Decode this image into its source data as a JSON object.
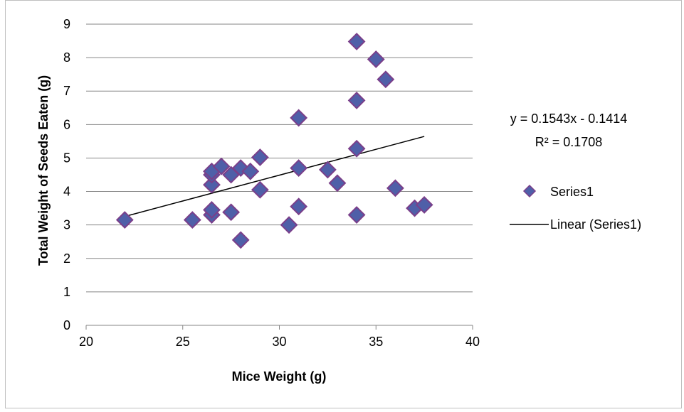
{
  "chart_data": {
    "type": "scatter",
    "xlabel": "Mice Weight (g)",
    "ylabel": "Total Weight of Seeds Eaten (g)",
    "xlim": [
      20,
      40
    ],
    "ylim": [
      0,
      9
    ],
    "x_ticks": [
      20,
      25,
      30,
      35,
      40
    ],
    "y_ticks": [
      0,
      1,
      2,
      3,
      4,
      5,
      6,
      7,
      8,
      9
    ],
    "grid": "horizontal",
    "legend_position": "right",
    "series": [
      {
        "name": "Series1",
        "color": "#4f5fa8",
        "edge_color": "#7a3f8a",
        "points": [
          [
            22,
            3.15
          ],
          [
            25.5,
            3.15
          ],
          [
            26.5,
            3.3
          ],
          [
            26.5,
            3.45
          ],
          [
            26.5,
            4.2
          ],
          [
            26.5,
            4.5
          ],
          [
            26.5,
            4.6
          ],
          [
            27,
            4.75
          ],
          [
            27.5,
            4.5
          ],
          [
            27.5,
            3.38
          ],
          [
            28,
            4.7
          ],
          [
            28,
            2.55
          ],
          [
            28.5,
            4.6
          ],
          [
            29,
            5.02
          ],
          [
            29,
            4.05
          ],
          [
            30.5,
            3.0
          ],
          [
            31,
            6.2
          ],
          [
            31,
            4.7
          ],
          [
            31,
            3.55
          ],
          [
            32.5,
            4.65
          ],
          [
            33,
            4.25
          ],
          [
            34,
            8.48
          ],
          [
            34,
            6.72
          ],
          [
            34,
            5.28
          ],
          [
            34,
            3.3
          ],
          [
            35,
            7.95
          ],
          [
            35.5,
            7.35
          ],
          [
            36,
            4.1
          ],
          [
            37,
            3.5
          ],
          [
            37.5,
            3.6
          ]
        ]
      }
    ],
    "trendline": {
      "name": "Linear (Series1)",
      "slope": 0.1543,
      "intercept": -0.1414,
      "x_range": [
        22,
        37.5
      ],
      "equation": "y = 0.1543x - 0.1414",
      "r_squared": "R² = 0.1708",
      "color": "#000000"
    }
  }
}
